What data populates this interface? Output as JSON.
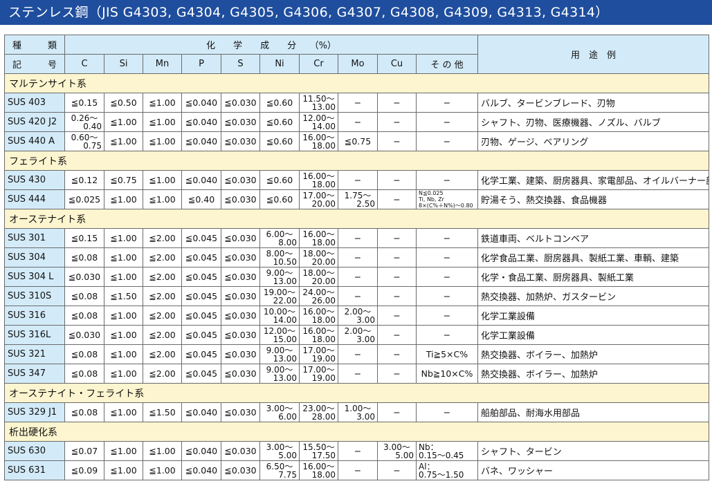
{
  "title": "ステンレス鋼（JIS G4303, G4304, G4305, G4306, G4307, G4308, G4309, G4313, G4314）",
  "header": {
    "kind_top": [
      "種",
      "類"
    ],
    "kind_bottom": [
      "記",
      "号"
    ],
    "chem": "化　　学　　成　　分　　（%）",
    "use": "用　途　例",
    "elements": [
      "C",
      "Si",
      "Mn",
      "P",
      "S",
      "Ni",
      "Cr",
      "Mo",
      "Cu",
      "そ の 他"
    ]
  },
  "sections": [
    {
      "label": "マルテンサイト系",
      "rows": [
        {
          "name": "SUS 403",
          "vals": [
            "≦0.15",
            "≦0.50",
            "≦1.00",
            "≦0.040",
            "≦0.030",
            "≦0.60",
            [
              "11.50〜",
              "13.00"
            ],
            "−",
            "−",
            "−"
          ],
          "use": "バルブ、タービンブレード、刃物"
        },
        {
          "name": "SUS 420 J2",
          "vals": [
            [
              "0.26〜",
              "0.40"
            ],
            "≦1.00",
            "≦1.00",
            "≦0.040",
            "≦0.030",
            "≦0.60",
            [
              "12.00〜",
              "14.00"
            ],
            "−",
            "−",
            "−"
          ],
          "use": "シャフト、刃物、医療機器、ノズル、バルブ"
        },
        {
          "name": "SUS 440 A",
          "vals": [
            [
              "0.60〜",
              "0.75"
            ],
            "≦1.00",
            "≦1.00",
            "≦0.040",
            "≦0.030",
            "≦0.60",
            [
              "16.00〜",
              "18.00"
            ],
            "≦0.75",
            "−",
            "−"
          ],
          "use": "刃物、ゲージ、ベアリング"
        }
      ]
    },
    {
      "label": "フェライト系",
      "rows": [
        {
          "name": "SUS 430",
          "vals": [
            "≦0.12",
            "≦0.75",
            "≦1.00",
            "≦0.040",
            "≦0.030",
            "≦0.60",
            [
              "16.00〜",
              "18.00"
            ],
            "−",
            "−",
            "−"
          ],
          "use": "化学工業、建築、厨房器具、家電部品、オイルバーナー部品"
        },
        {
          "name": "SUS 444",
          "vals": [
            "≦0.025",
            "≦1.00",
            "≦1.00",
            "≦0.40",
            "≦0.030",
            "≦0.60",
            [
              "17.00〜",
              "20.00"
            ],
            [
              "1.75〜",
              "2.50"
            ],
            "−",
            {
              "small": [
                "N≦0.025",
                "Ti, Nb, Zr",
                "8×(C%＋N%)〜0.80"
              ]
            }
          ],
          "use": "貯湯そう、熱交換器、食品機器"
        }
      ]
    },
    {
      "label": "オーステナイト系",
      "rows": [
        {
          "name": "SUS 301",
          "vals": [
            "≦0.15",
            "≦1.00",
            "≦2.00",
            "≦0.045",
            "≦0.030",
            [
              "6.00〜",
              "8.00"
            ],
            [
              "16.00〜",
              "18.00"
            ],
            "−",
            "−",
            "−"
          ],
          "use": "鉄道車両、ベルトコンベア"
        },
        {
          "name": "SUS 304",
          "vals": [
            "≦0.08",
            "≦1.00",
            "≦2.00",
            "≦0.045",
            "≦0.030",
            [
              "8.00〜",
              "10.50"
            ],
            [
              "18.00〜",
              "20.00"
            ],
            "−",
            "−",
            "−"
          ],
          "use": "化学食品工業、厨房器具、製紙工業、車輌、建築"
        },
        {
          "name": "SUS 304 L",
          "vals": [
            "≦0.030",
            "≦1.00",
            "≦2.00",
            "≦0.045",
            "≦0.030",
            [
              "9.00〜",
              "13.00"
            ],
            [
              "18.00〜",
              "20.00"
            ],
            "−",
            "−",
            "−"
          ],
          "use": "化学・食品工業、厨房器具、製紙工業"
        },
        {
          "name": "SUS 310S",
          "vals": [
            "≦0.08",
            "≦1.50",
            "≦2.00",
            "≦0.045",
            "≦0.030",
            [
              "19.00〜",
              "22.00"
            ],
            [
              "24.00〜",
              "26.00"
            ],
            "−",
            "−",
            "−"
          ],
          "use": "熱交換器、加熱炉、ガスタービン"
        },
        {
          "name": "SUS 316",
          "vals": [
            "≦0.08",
            "≦1.00",
            "≦2.00",
            "≦0.045",
            "≦0.030",
            [
              "10.00〜",
              "14.00"
            ],
            [
              "16.00〜",
              "18.00"
            ],
            [
              "2.00〜",
              "3.00"
            ],
            "−",
            "−"
          ],
          "use": "化学工業設備"
        },
        {
          "name": "SUS 316L",
          "vals": [
            "≦0.030",
            "≦1.00",
            "≦2.00",
            "≦0.045",
            "≦0.030",
            [
              "12.00〜",
              "15.00"
            ],
            [
              "16.00〜",
              "18.00"
            ],
            [
              "2.00〜",
              "3.00"
            ],
            "−",
            "−"
          ],
          "use": "化学工業設備"
        },
        {
          "name": "SUS 321",
          "vals": [
            "≦0.08",
            "≦1.00",
            "≦2.00",
            "≦0.045",
            "≦0.030",
            [
              "9.00〜",
              "13.00"
            ],
            [
              "17.00〜",
              "19.00"
            ],
            "−",
            "−",
            "Ti≧5×C%"
          ],
          "use": "熱交換器、ボイラー、加熱炉"
        },
        {
          "name": "SUS 347",
          "vals": [
            "≦0.08",
            "≦1.00",
            "≦2.00",
            "≦0.045",
            "≦0.030",
            [
              "9.00〜",
              "13.00"
            ],
            [
              "17.00〜",
              "19.00"
            ],
            "−",
            "−",
            "Nb≧10×C%"
          ],
          "use": "熱交換器、ボイラー、加熱炉"
        }
      ]
    },
    {
      "label": "オーステナイト・フェライト系",
      "rows": [
        {
          "name": "SUS 329 J1",
          "vals": [
            "≦0.08",
            "≦1.00",
            "≦1.50",
            "≦0.040",
            "≦0.030",
            [
              "3.00〜",
              "6.00"
            ],
            [
              "23.00〜",
              "28.00"
            ],
            [
              "1.00〜",
              "3.00"
            ],
            "−",
            "−"
          ],
          "use": "船舶部品、耐海水用部品"
        }
      ]
    },
    {
      "label": "析出硬化系",
      "rows": [
        {
          "name": "SUS 630",
          "vals": [
            "≦0.07",
            "≦1.00",
            "≦1.00",
            "≦0.040",
            "≦0.030",
            [
              "3.00〜",
              "5.00"
            ],
            [
              "15.50〜",
              "17.50"
            ],
            "−",
            [
              "3.00〜",
              "5.00"
            ],
            {
              "two": [
                "Nb：",
                "0.15〜0.45"
              ]
            }
          ],
          "use": "シャフト、タービン"
        },
        {
          "name": "SUS 631",
          "vals": [
            "≦0.09",
            "≦1.00",
            "≦1.00",
            "≦0.040",
            "≦0.030",
            [
              "6.50〜",
              "7.75"
            ],
            [
              "16.00〜",
              "18.00"
            ],
            "−",
            "−",
            {
              "two": [
                "Al：",
                "0.75〜1.50"
              ]
            }
          ],
          "use": "バネ、ワッシャー"
        }
      ]
    }
  ]
}
